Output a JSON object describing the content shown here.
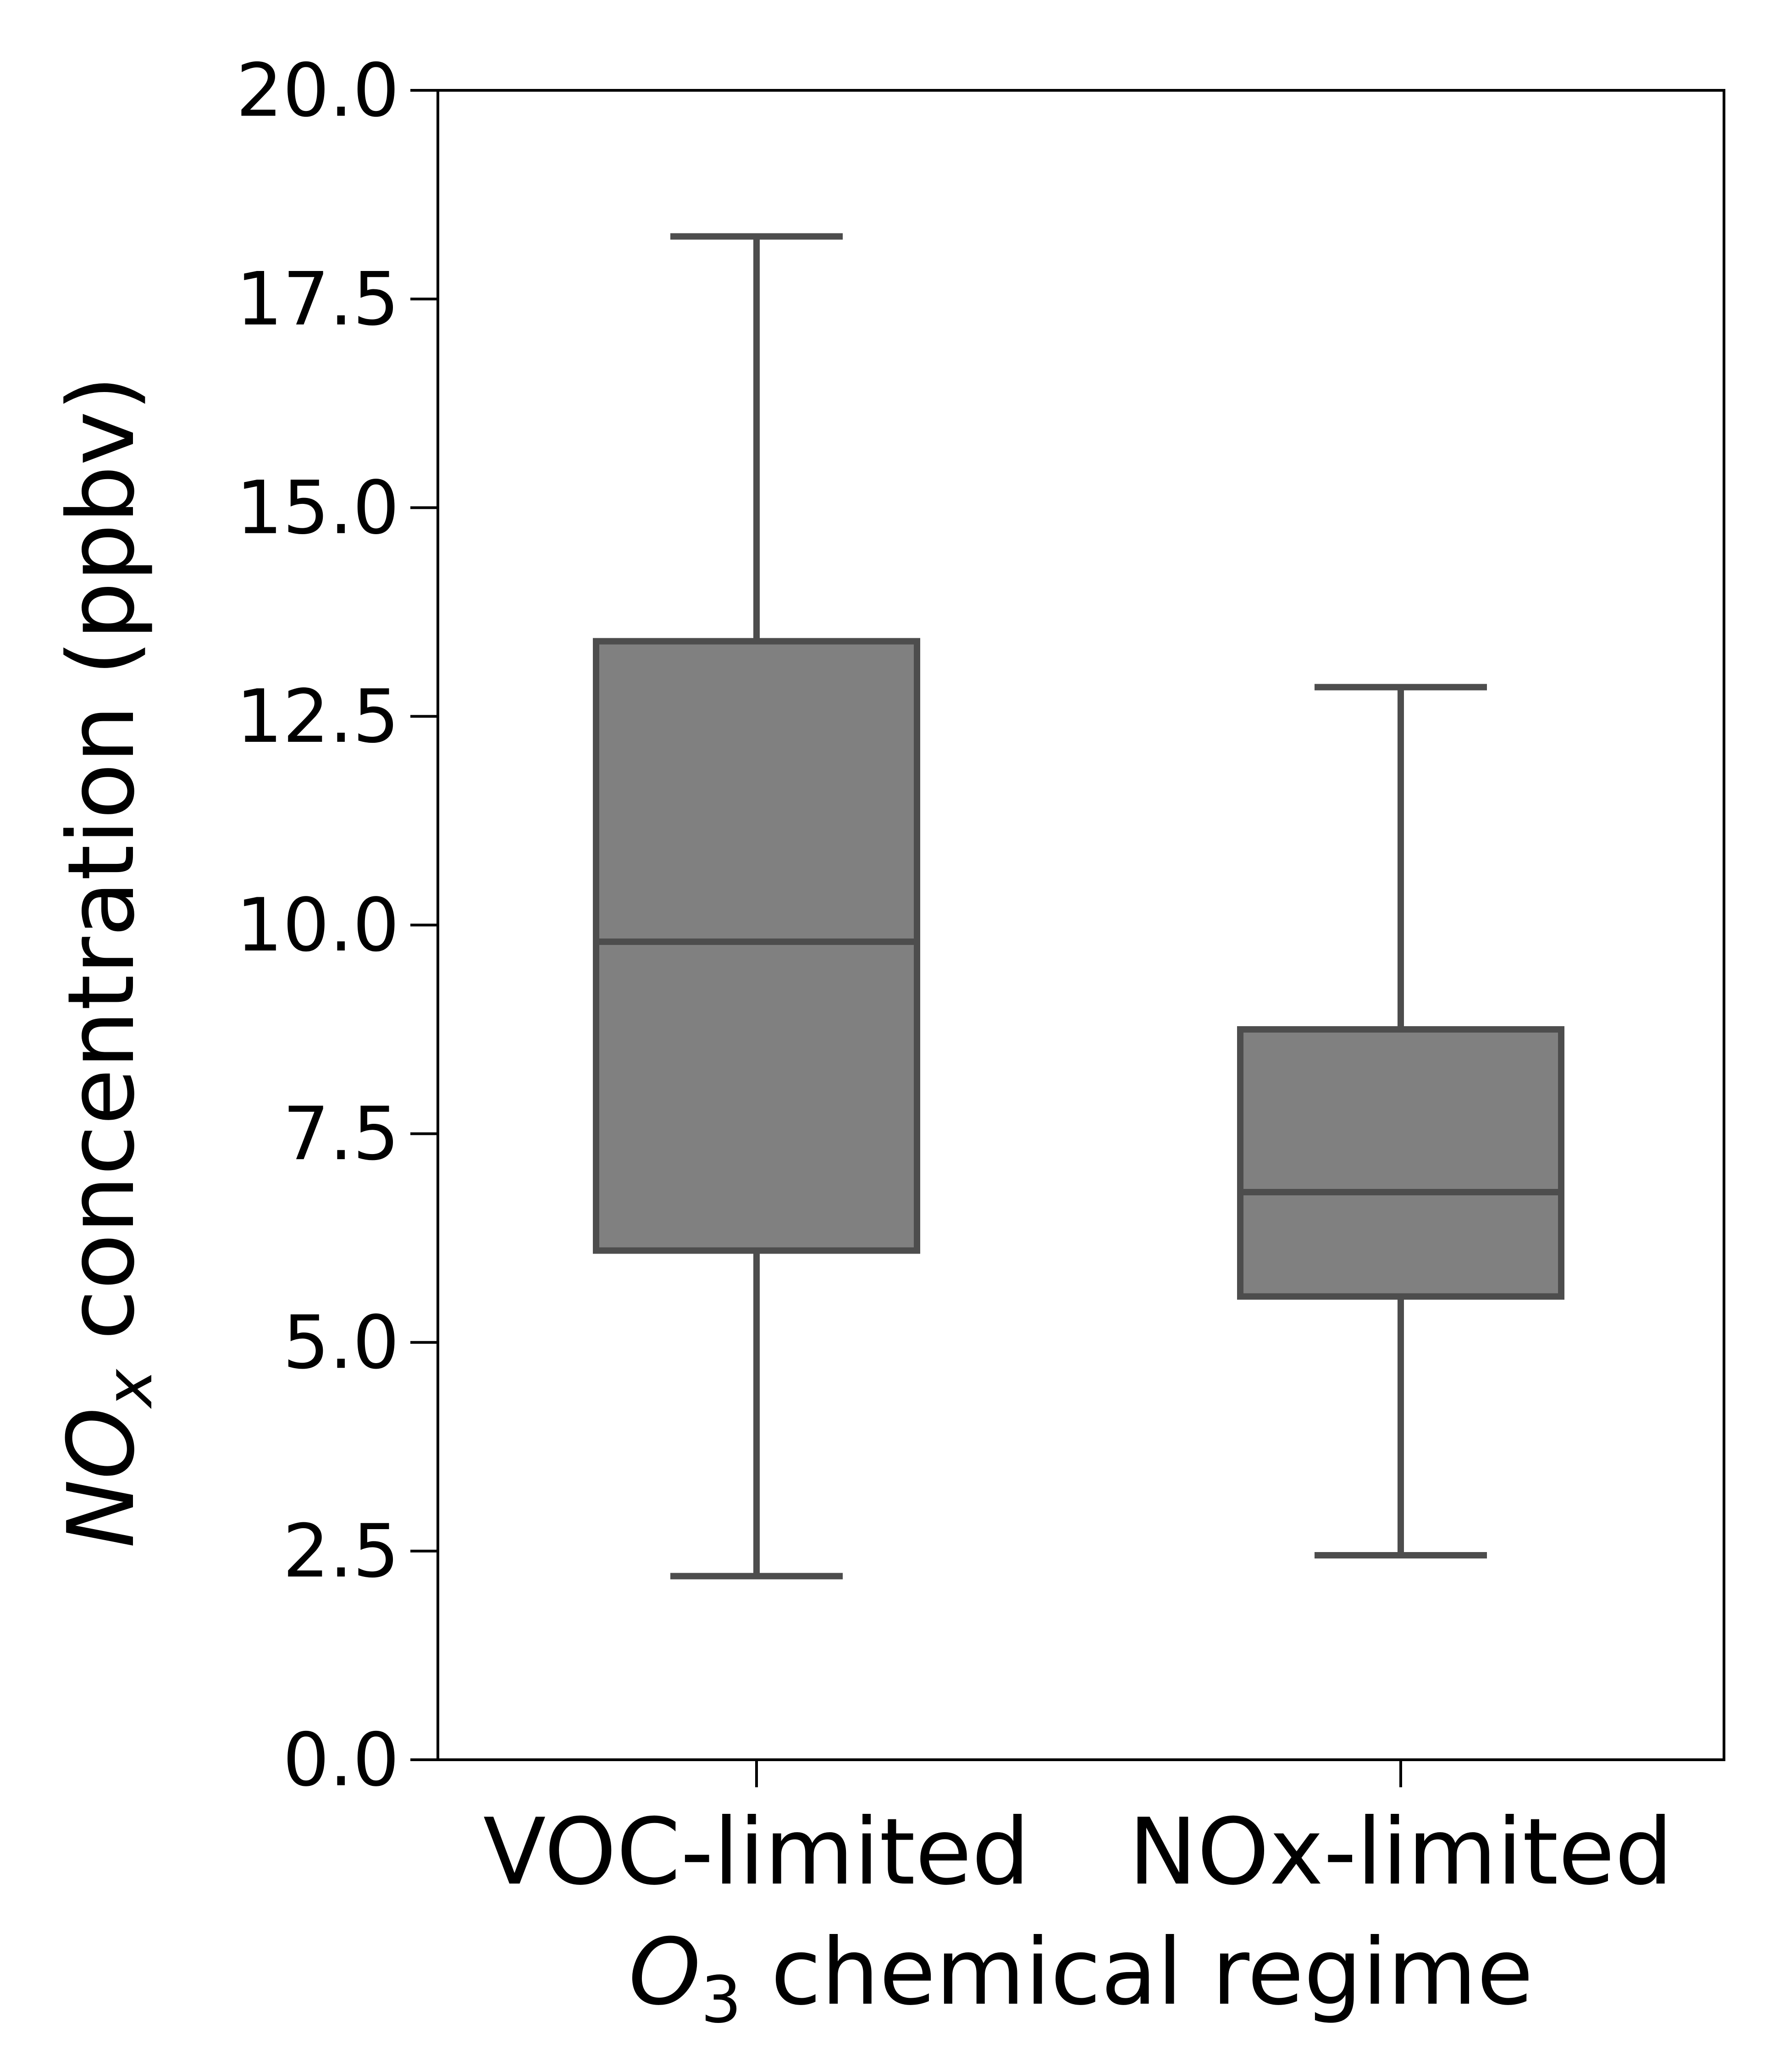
{
  "chart_data": {
    "type": "box",
    "xlabel": {
      "symbol": "O",
      "subscript": "3",
      "rest": " chemical regime"
    },
    "ylabel": {
      "symbol": "NO",
      "subscript": "x",
      "rest": " concentration (ppbv)"
    },
    "ylim": [
      0,
      20
    ],
    "yticks": [
      "0.0",
      "2.5",
      "5.0",
      "7.5",
      "10.0",
      "12.5",
      "15.0",
      "17.5",
      "20.0"
    ],
    "categories": [
      "VOC-limited",
      "NOx-limited"
    ],
    "boxes": [
      {
        "category": "VOC-limited",
        "whisker_low": 2.2,
        "q1": 6.1,
        "median": 9.8,
        "q3": 13.4,
        "whisker_high": 18.25
      },
      {
        "category": "NOx-limited",
        "whisker_low": 2.45,
        "q1": 5.55,
        "median": 6.8,
        "q3": 8.75,
        "whisker_high": 12.85
      }
    ],
    "colors": {
      "box_fill": "#808080",
      "box_edge": "#4d4d4d",
      "axis": "#000000"
    },
    "grid": false,
    "legend": "none"
  }
}
